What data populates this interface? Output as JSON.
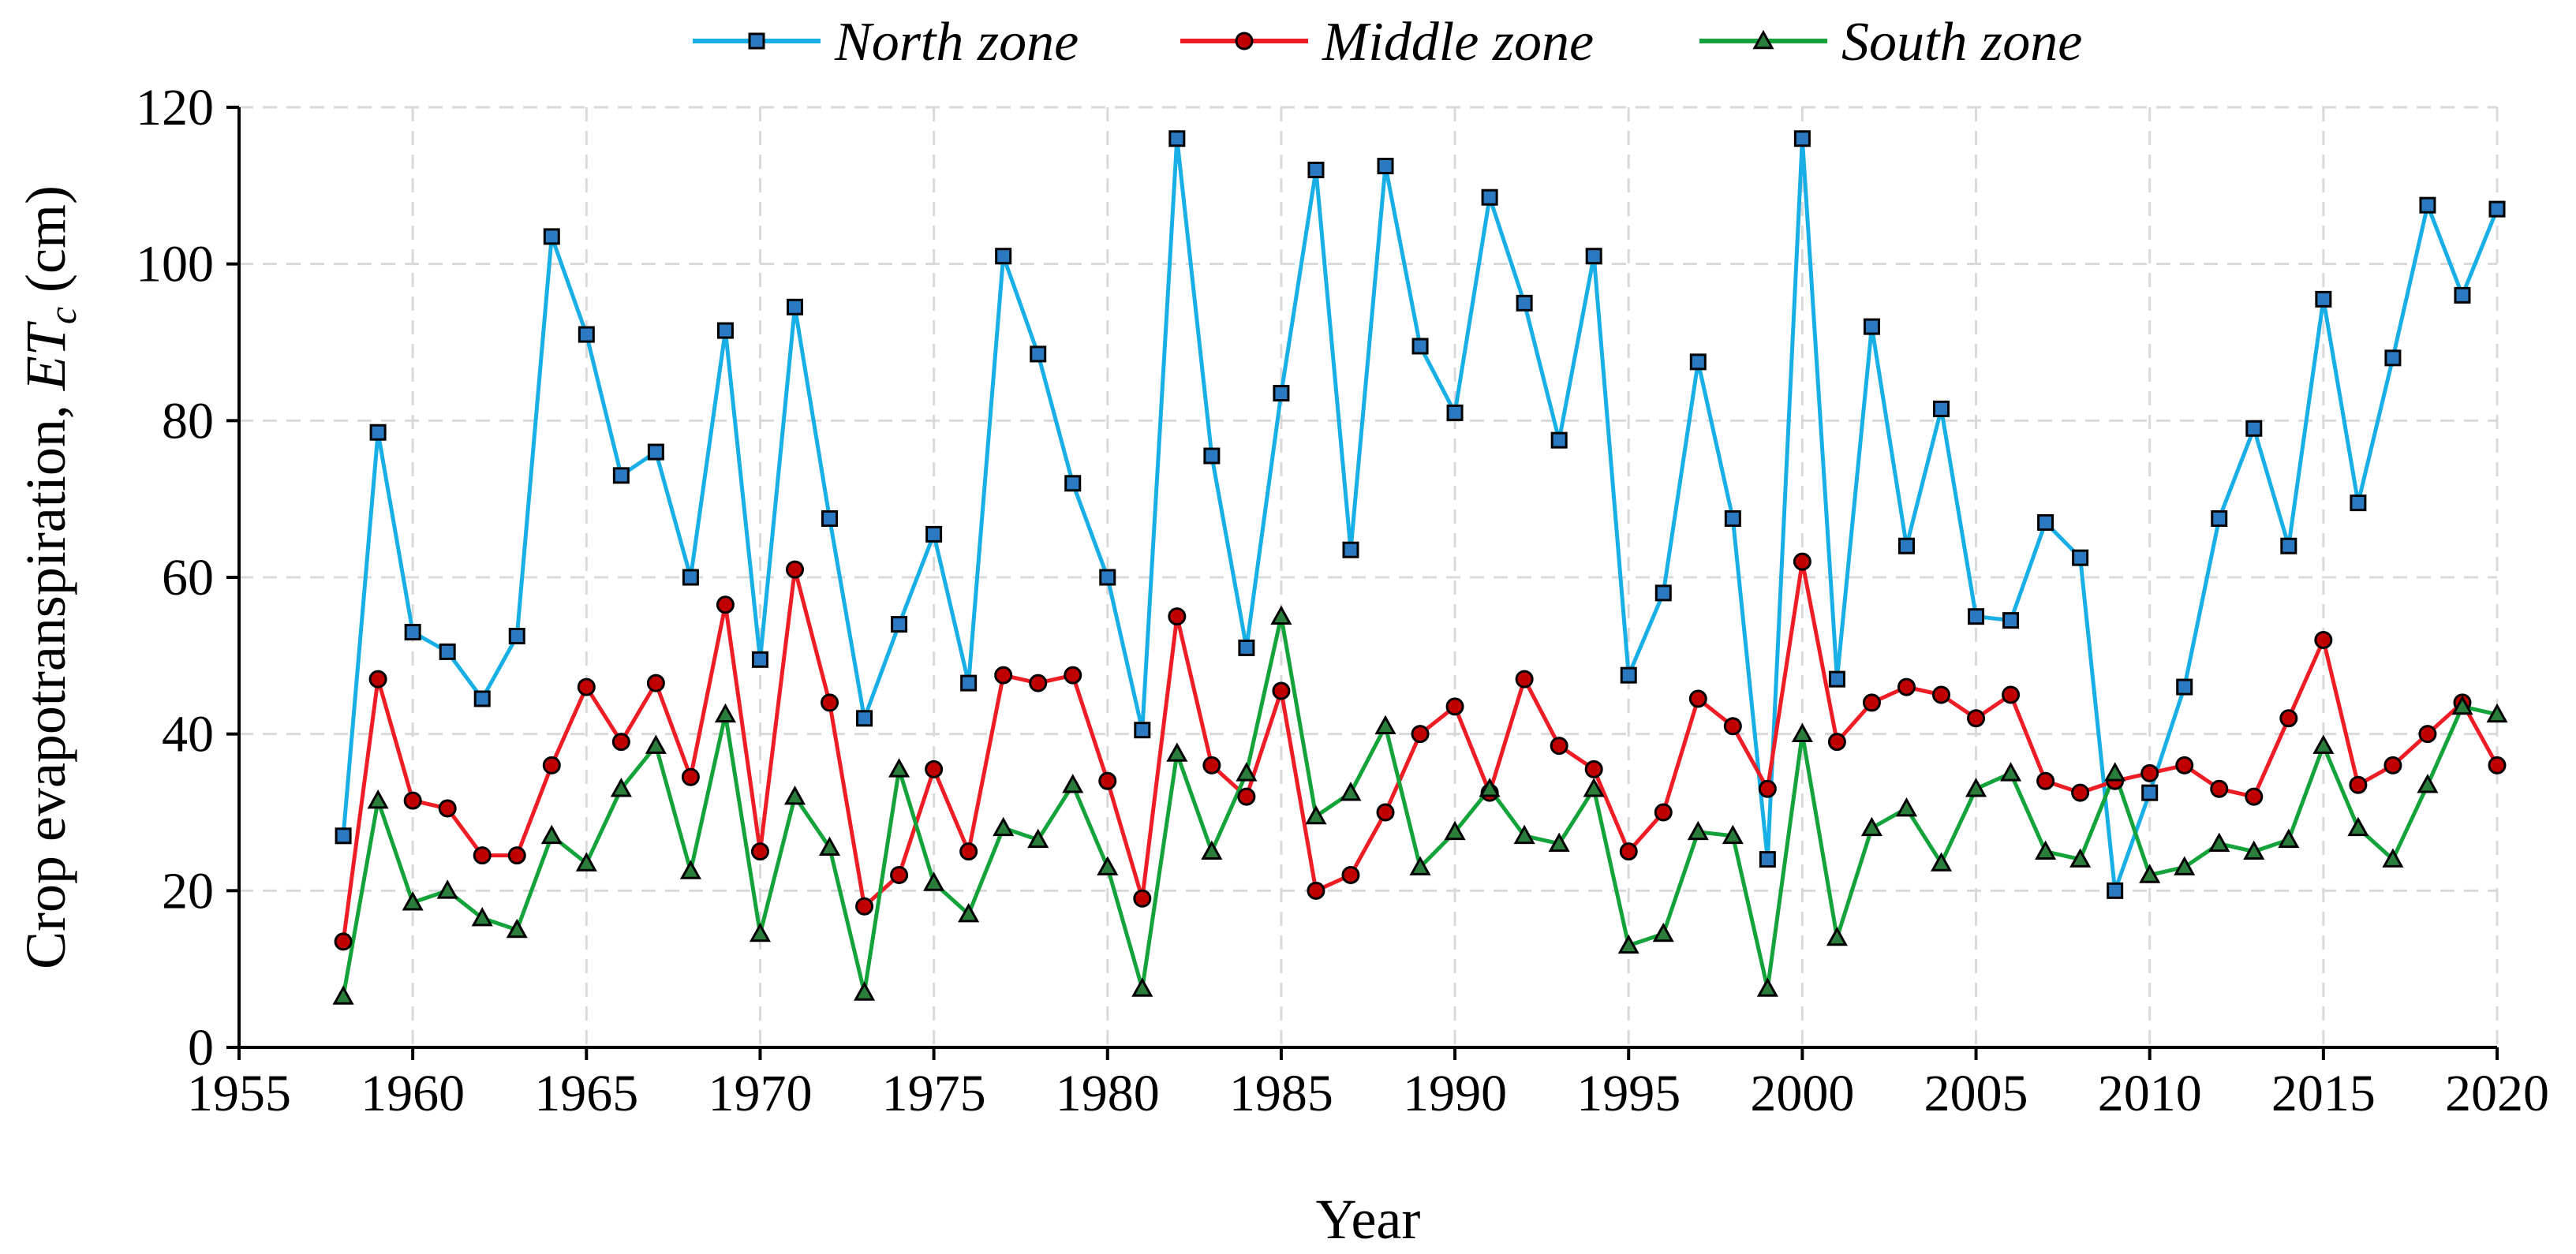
{
  "chart_data": {
    "type": "line",
    "xlabel": "Year",
    "ylabel_main": "Crop evapotranspiration, ",
    "ylabel_var": "ET",
    "ylabel_sub": "c",
    "ylabel_unit": " (cm)",
    "xlim": [
      1955,
      2020
    ],
    "ylim": [
      0,
      120
    ],
    "xticks": [
      1955,
      1960,
      1965,
      1970,
      1975,
      1980,
      1985,
      1990,
      1995,
      2000,
      2005,
      2010,
      2015,
      2020
    ],
    "yticks": [
      0,
      20,
      40,
      60,
      80,
      100,
      120
    ],
    "grid": true,
    "legend_position": "top",
    "x": [
      1958,
      1959,
      1960,
      1961,
      1962,
      1963,
      1964,
      1965,
      1966,
      1967,
      1968,
      1969,
      1970,
      1971,
      1972,
      1973,
      1974,
      1975,
      1976,
      1977,
      1978,
      1979,
      1980,
      1981,
      1982,
      1983,
      1984,
      1985,
      1986,
      1987,
      1988,
      1989,
      1990,
      1991,
      1992,
      1993,
      1994,
      1995,
      1996,
      1997,
      1998,
      1999,
      2000,
      2001,
      2002,
      2003,
      2004,
      2005,
      2006,
      2007,
      2008,
      2009,
      2010,
      2011,
      2012,
      2013,
      2014,
      2015,
      2016,
      2017,
      2018,
      2019,
      2020
    ],
    "series": [
      {
        "name": "North zone",
        "color": "#18aee6",
        "marker": "square",
        "marker_fill": "#2b79c0",
        "values": [
          27,
          78.5,
          53,
          50.5,
          44.5,
          52.5,
          103.5,
          91,
          73,
          76,
          60,
          91.5,
          49.5,
          94.5,
          67.5,
          42,
          54,
          65.5,
          46.5,
          101,
          88.5,
          72,
          60,
          40.5,
          116,
          75.5,
          51,
          83.5,
          112,
          63.5,
          112.5,
          89.5,
          81,
          108.5,
          95,
          77.5,
          101,
          47.5,
          58,
          87.5,
          67.5,
          24,
          116,
          47,
          92,
          64,
          81.5,
          55,
          54.5,
          67,
          62.5,
          20,
          32.5,
          46,
          67.5,
          79,
          64,
          95.5,
          69.5,
          88,
          107.5,
          96,
          107
        ]
      },
      {
        "name": "Middle zone",
        "color": "#ee1c24",
        "marker": "circle",
        "marker_fill": "#c00000",
        "values": [
          13.5,
          47,
          31.5,
          30.5,
          24.5,
          24.5,
          36,
          46,
          39,
          46.5,
          34.5,
          56.5,
          25,
          61,
          44,
          18,
          22,
          35.5,
          25,
          47.5,
          46.5,
          47.5,
          34,
          19,
          55,
          36,
          32,
          45.5,
          20,
          22,
          30,
          40,
          43.5,
          32.5,
          47,
          38.5,
          35.5,
          25,
          30,
          44.5,
          41,
          33,
          62,
          39,
          44,
          46,
          45,
          42,
          45,
          34,
          32.5,
          34,
          35,
          36,
          33,
          32,
          42,
          52,
          33.5,
          36,
          40,
          44,
          36
        ]
      },
      {
        "name": "South zone",
        "color": "#13a33a",
        "marker": "triangle",
        "marker_fill": "#2a7d3a",
        "values": [
          6.5,
          31.5,
          18.5,
          20,
          16.5,
          15,
          27,
          23.5,
          33,
          38.5,
          22.5,
          42.5,
          14.5,
          32,
          25.5,
          7,
          35.5,
          21,
          17,
          28,
          26.5,
          33.5,
          23,
          7.5,
          37.5,
          25,
          35,
          55,
          29.5,
          32.5,
          41,
          23,
          27.5,
          33,
          27,
          26,
          33,
          13,
          14.5,
          27.5,
          27,
          7.5,
          40,
          14,
          28,
          30.5,
          23.5,
          33,
          35,
          25,
          24,
          35,
          22,
          23,
          26,
          25,
          26.5,
          38.5,
          28,
          24,
          33.5,
          43.5,
          42.5
        ]
      }
    ]
  }
}
